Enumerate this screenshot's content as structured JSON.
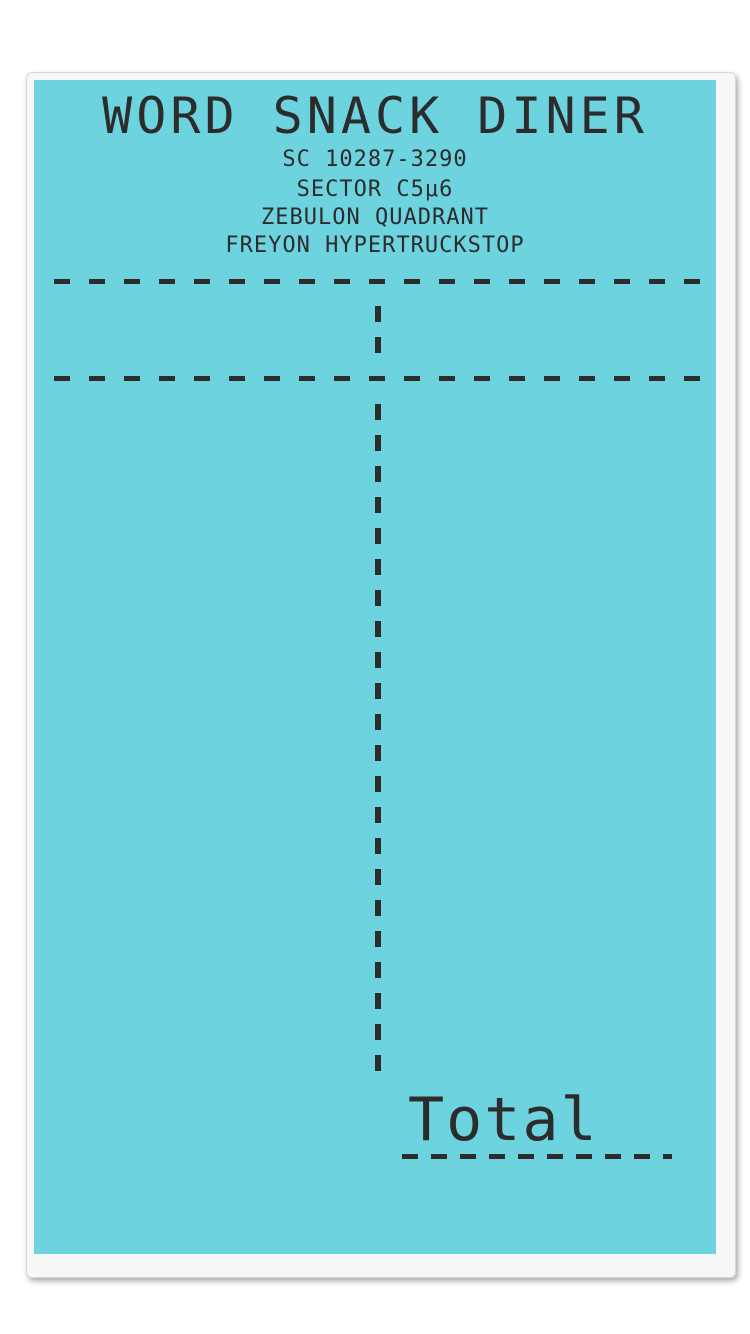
{
  "receipt": {
    "title": "WORD SNACK DINER",
    "lines": [
      "SC 10287-3290",
      "SECTOR C5μ6",
      "ZEBULON QUADRANT",
      "FREYON HYPERTRUCKSTOP"
    ],
    "total_label": "Total"
  }
}
